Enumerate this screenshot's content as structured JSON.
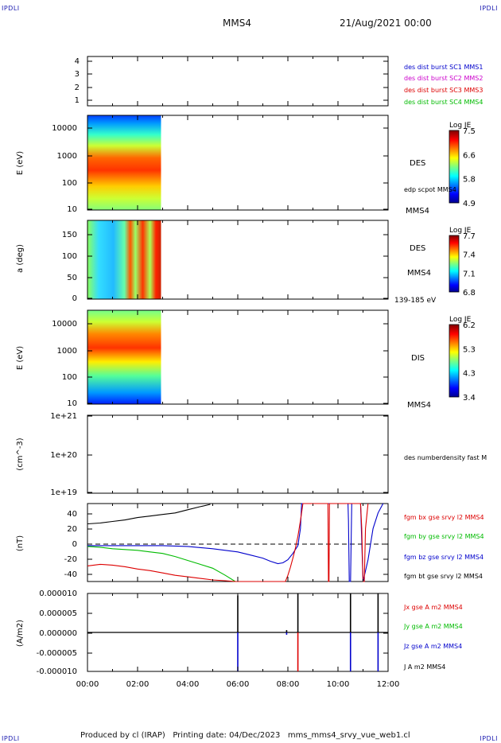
{
  "corner_label": "IPDLI",
  "header": {
    "spacecraft": "MMS4",
    "date": "21/Aug/2021 00:00"
  },
  "footer": "Produced by cl (IRAP)   Printing date: 04/Dec/2023   mms_mms4_srvy_vue_web1.cl",
  "chart_data": [
    {
      "type": "line",
      "panel": "spacecraft-config",
      "yticks": [
        "4",
        "3",
        "2",
        "1"
      ],
      "legend": [
        {
          "label": "des dist burst SC1 MMS1",
          "color": "#0000cc"
        },
        {
          "label": "des dist burst SC2 MMS2",
          "color": "#cc00cc"
        },
        {
          "label": "des dist burst SC3 MMS3",
          "color": "#dd0000"
        },
        {
          "label": "des dist burst SC4 MMS4",
          "color": "#00bb00"
        }
      ]
    },
    {
      "type": "heatmap",
      "panel": "des-energy",
      "ylabel": "E (eV)",
      "yscale": "log",
      "ylim": [
        10,
        30000
      ],
      "yticks": [
        "10000",
        "1000",
        "100",
        "10"
      ],
      "right_labels": [
        "DES",
        "edp scpot MMS4",
        "MMS4"
      ],
      "colorbar": {
        "title": "Log JE",
        "ticks": [
          "7.5",
          "6.6",
          "5.8",
          "4.9"
        ]
      },
      "data_extent_hours": [
        0.0,
        2.9
      ]
    },
    {
      "type": "heatmap",
      "panel": "des-pitch",
      "ylabel": "a (deg)",
      "ylim": [
        0,
        180
      ],
      "yticks": [
        "150",
        "100",
        "50",
        "0"
      ],
      "right_labels": [
        "DES",
        "MMS4",
        "139-185 eV"
      ],
      "colorbar": {
        "title": "Log JE",
        "ticks": [
          "7.7",
          "7.4",
          "7.1",
          "6.8"
        ]
      },
      "data_extent_hours": [
        0.0,
        2.9
      ]
    },
    {
      "type": "heatmap",
      "panel": "dis-energy",
      "ylabel": "E (eV)",
      "yscale": "log",
      "ylim": [
        10,
        30000
      ],
      "yticks": [
        "10000",
        "1000",
        "100",
        "10"
      ],
      "right_labels": [
        "DIS",
        "MMS4"
      ],
      "colorbar": {
        "title": "Log JE",
        "ticks": [
          "6.2",
          "5.3",
          "4.3",
          "3.4"
        ]
      },
      "data_extent_hours": [
        0.0,
        2.9
      ]
    },
    {
      "type": "line",
      "panel": "density",
      "ylabel": "(cm^-3)",
      "yscale": "log",
      "yticks": [
        "1e+21",
        "1e+20",
        "1e+19"
      ],
      "legend": [
        {
          "label": "des numberdensity fast M",
          "color": "#000000"
        }
      ]
    },
    {
      "type": "line",
      "panel": "magnetic-field",
      "ylabel": "(nT)",
      "ylim": [
        -48,
        52
      ],
      "yticks": [
        "40",
        "20",
        "0",
        "-20",
        "-40"
      ],
      "legend": [
        {
          "label": "fgm bx gse srvy l2 MMS4",
          "color": "#dd0000"
        },
        {
          "label": "fgm by gse srvy l2 MMS4",
          "color": "#00bb00"
        },
        {
          "label": "fgm bz gse srvy l2 MMS4",
          "color": "#0000cc"
        },
        {
          "label": "fgm bt gse srvy l2 MMS4",
          "color": "#000000"
        }
      ],
      "series": [
        {
          "name": "fgm bt gse srvy l2 MMS4",
          "color": "#000000",
          "x": [
            0,
            0.5,
            1,
            1.5,
            2,
            2.5,
            3,
            3.5,
            4,
            4.5,
            4.9
          ],
          "y": [
            26,
            27,
            29,
            31,
            34,
            36,
            38,
            40,
            44,
            48,
            51
          ]
        },
        {
          "name": "fgm by gse srvy l2 MMS4",
          "color": "#00bb00",
          "x": [
            0,
            0.5,
            1,
            1.5,
            2,
            2.5,
            3,
            3.5,
            4,
            4.5,
            5,
            5.5,
            5.9
          ],
          "y": [
            -3,
            -4,
            -6,
            -7,
            -8,
            -10,
            -12,
            -16,
            -21,
            -26,
            -31,
            -40,
            -48
          ]
        },
        {
          "name": "fgm bz gse srvy l2 MMS4",
          "color": "#0000cc",
          "x": [
            0,
            1,
            2,
            3,
            4,
            5,
            5.5,
            6,
            6.5,
            7,
            7.3,
            7.6,
            7.8,
            8.0,
            8.2,
            8.4,
            8.5,
            8.55,
            9,
            9.5,
            10.4,
            10.42,
            10.45,
            10.5,
            10.55,
            10.7,
            10.9,
            11.0,
            11.2,
            11.4,
            11.6,
            11.8
          ],
          "y": [
            -2,
            -2,
            -2,
            -2,
            -3,
            -6,
            -8,
            -10,
            -14,
            -18,
            -22,
            -25,
            -24,
            -20,
            -12,
            -2,
            20,
            52,
            52,
            52,
            52,
            30,
            -48,
            -48,
            52,
            52,
            52,
            -48,
            -20,
            20,
            40,
            52
          ]
        },
        {
          "name": "fgm bx gse srvy l2 MMS4",
          "color": "#dd0000",
          "x": [
            0,
            0.5,
            1,
            1.5,
            2,
            2.5,
            3,
            3.5,
            4,
            4.5,
            5,
            5.5,
            5.9,
            7.9,
            8.0,
            8.1,
            8.2,
            8.3,
            8.4,
            8.5,
            8.6,
            8.7,
            9.6,
            9.62,
            9.64,
            9.66,
            10.9,
            10.95,
            11.0,
            11.05,
            11.1,
            11.2
          ],
          "y": [
            -28,
            -26,
            -27,
            -29,
            -32,
            -34,
            -37,
            -40,
            -42,
            -44,
            -46,
            -47,
            -48,
            -48,
            -40,
            -30,
            -18,
            -5,
            10,
            30,
            52,
            52,
            52,
            -48,
            -48,
            52,
            52,
            20,
            -48,
            -48,
            20,
            52
          ]
        }
      ]
    },
    {
      "type": "line",
      "panel": "current-density",
      "ylabel": "(A/m2)",
      "ylim": [
        -1e-05,
        1e-05
      ],
      "yticks": [
        "0.000010",
        "0.000005",
        "0.000000",
        "-0.000005",
        "-0.000010"
      ],
      "xlabel_ticks": [
        "00:00",
        "02:00",
        "04:00",
        "06:00",
        "08:00",
        "10:00",
        "12:00"
      ],
      "xlim_hours": [
        0,
        12
      ],
      "legend": [
        {
          "label": "Jx gse A m2 MMS4",
          "color": "#dd0000"
        },
        {
          "label": "Jy gse A m2 MMS4",
          "color": "#00bb00"
        },
        {
          "label": "Jz gse A m2 MMS4",
          "color": "#0000cc"
        },
        {
          "label": "J A m2 MMS4",
          "color": "#000000"
        }
      ],
      "spikes": [
        {
          "x": 6.0,
          "y_pos": 9.5e-06,
          "y_neg": -1e-05,
          "color": "#0000cc"
        },
        {
          "x": 7.95,
          "y_pos": 6e-07,
          "y_neg": -6e-07,
          "color": "#0000cc"
        },
        {
          "x": 8.4,
          "y_pos": 1e-05,
          "y_neg": -1e-05,
          "color": "#dd0000"
        },
        {
          "x": 10.5,
          "y_pos": 1e-05,
          "y_neg": -1e-05,
          "color": "#0000cc"
        },
        {
          "x": 11.6,
          "y_pos": 1e-05,
          "y_neg": -1e-05,
          "color": "#0000cc"
        }
      ]
    }
  ]
}
